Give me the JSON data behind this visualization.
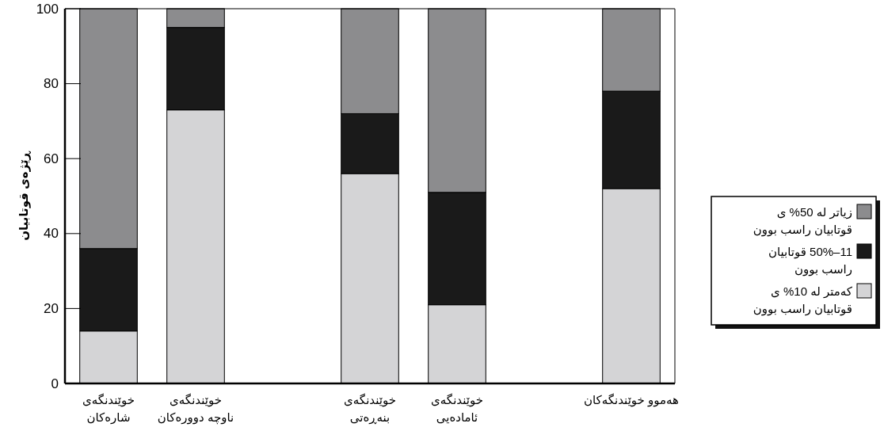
{
  "chart_data": {
    "type": "bar",
    "stacked": true,
    "ylabel": "ڕێژەی قوتابیان",
    "categories": [
      "خوێندنگەی شارەکان",
      "خوێندنگەی ناوچە دوورەکان",
      null,
      "خوێندنگەی بنەڕەتی",
      "خوێندنگەی ئامادەیی",
      null,
      "هەموو خوێندنگەکان"
    ],
    "series": [
      {
        "name": "کەمتر لە 10% ی قوتابیان راسب بوون",
        "color": "#d4d4d6",
        "values": [
          14,
          73,
          null,
          56,
          21,
          null,
          52
        ]
      },
      {
        "name": "11–50% قوتابیان راسب بوون",
        "color": "#1a1a1a",
        "values": [
          22,
          22,
          null,
          16,
          30,
          null,
          26
        ]
      },
      {
        "name": "زیاتر لە 50% ی قوتابیان راسب بوون",
        "color": "#8c8c8e",
        "values": [
          64,
          5,
          null,
          28,
          49,
          null,
          22
        ]
      }
    ],
    "ylim": [
      0,
      100
    ],
    "yticks": [
      0,
      20,
      40,
      60,
      80,
      100
    ],
    "grid": false,
    "legend": "right"
  }
}
